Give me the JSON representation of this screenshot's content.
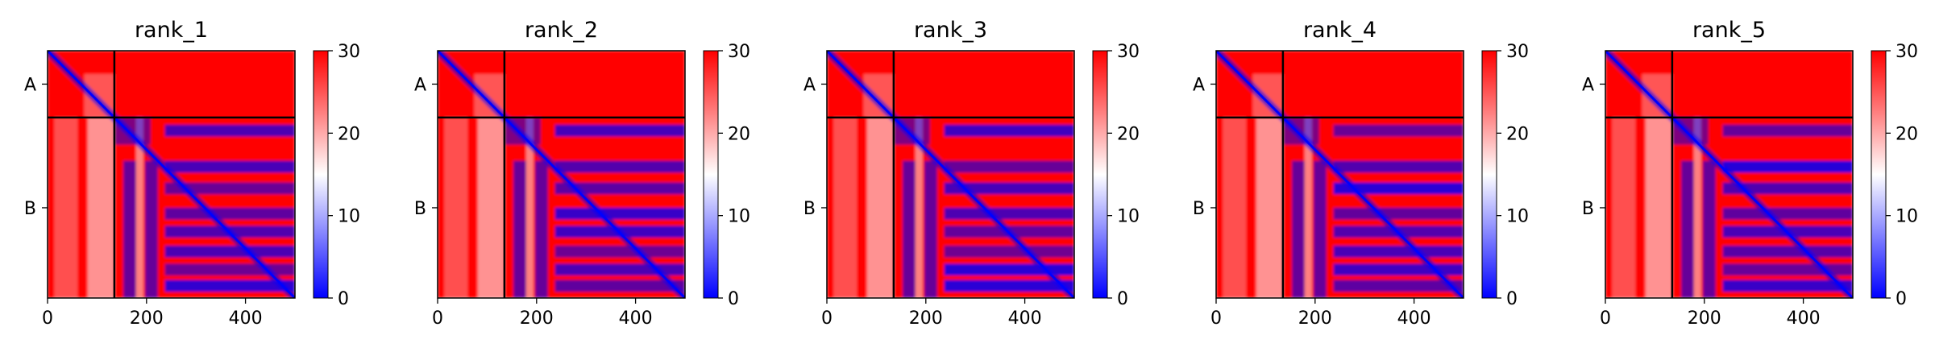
{
  "chart_data": [
    {
      "type": "heatmap",
      "title": "rank_1",
      "chains": [
        "A",
        "B"
      ],
      "chain_boundary": 135,
      "length": 500,
      "xticks": [
        0,
        200,
        400
      ],
      "xlim": [
        0,
        500
      ],
      "colorbar": {
        "min": 0,
        "max": 30,
        "ticks": [
          0,
          10,
          20,
          30
        ],
        "colormap": "bwr"
      }
    },
    {
      "type": "heatmap",
      "title": "rank_2",
      "chains": [
        "A",
        "B"
      ],
      "chain_boundary": 135,
      "length": 500,
      "xticks": [
        0,
        200,
        400
      ],
      "xlim": [
        0,
        500
      ],
      "colorbar": {
        "min": 0,
        "max": 30,
        "ticks": [
          0,
          10,
          20,
          30
        ],
        "colormap": "bwr"
      }
    },
    {
      "type": "heatmap",
      "title": "rank_3",
      "chains": [
        "A",
        "B"
      ],
      "chain_boundary": 135,
      "length": 500,
      "xticks": [
        0,
        200,
        400
      ],
      "xlim": [
        0,
        500
      ],
      "colorbar": {
        "min": 0,
        "max": 30,
        "ticks": [
          0,
          10,
          20,
          30
        ],
        "colormap": "bwr"
      }
    },
    {
      "type": "heatmap",
      "title": "rank_4",
      "chains": [
        "A",
        "B"
      ],
      "chain_boundary": 135,
      "length": 500,
      "xticks": [
        0,
        200,
        400
      ],
      "xlim": [
        0,
        500
      ],
      "colorbar": {
        "min": 0,
        "max": 30,
        "ticks": [
          0,
          10,
          20,
          30
        ],
        "colormap": "bwr"
      }
    },
    {
      "type": "heatmap",
      "title": "rank_5",
      "chains": [
        "A",
        "B"
      ],
      "chain_boundary": 135,
      "length": 500,
      "xticks": [
        0,
        200,
        400
      ],
      "xlim": [
        0,
        500
      ],
      "colorbar": {
        "min": 0,
        "max": 30,
        "ticks": [
          0,
          10,
          20,
          30
        ],
        "colormap": "bwr"
      }
    }
  ],
  "colors": {
    "low": "#0000ff",
    "mid": "#ffffff",
    "high": "#ff0000",
    "boundary": "#000000"
  }
}
